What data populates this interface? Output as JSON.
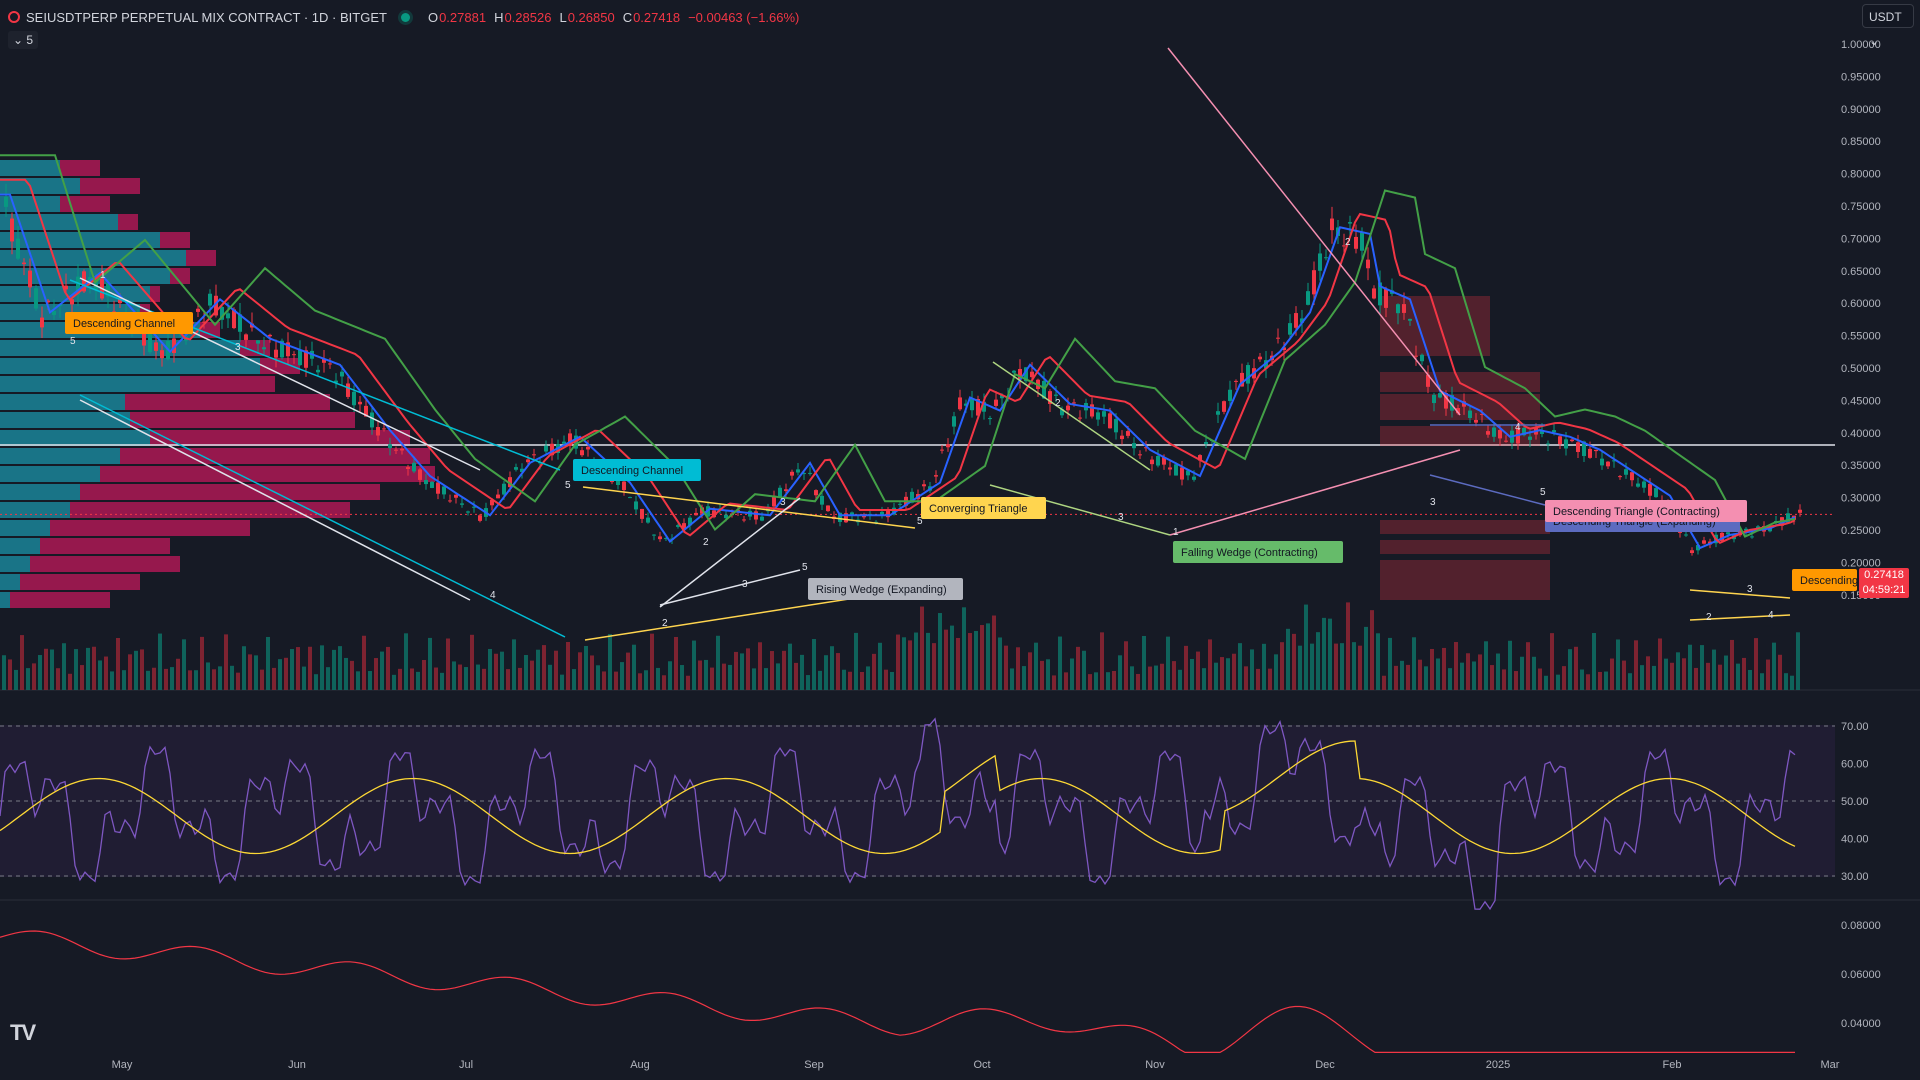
{
  "header": {
    "symbol": "SEIUSDTPERP PERPETUAL MIX CONTRACT · 1D · BITGET",
    "open_label": "O",
    "open": "0.27881",
    "high_label": "H",
    "high": "0.28526",
    "low_label": "L",
    "low": "0.26850",
    "close_label": "C",
    "close": "0.27418",
    "change": "−0.00463 (−1.66%)",
    "collapse_label": "⌄ 5",
    "currency": "USDT ⌄"
  },
  "price_axis": [
    "1.00000",
    "0.95000",
    "0.90000",
    "0.85000",
    "0.80000",
    "0.75000",
    "0.70000",
    "0.65000",
    "0.60000",
    "0.55000",
    "0.50000",
    "0.45000",
    "0.40000",
    "0.35000",
    "0.30000",
    "0.25000",
    "0.20000",
    "0.15000"
  ],
  "price_tag": {
    "price": "0.27418",
    "countdown": "04:59:21"
  },
  "rsi_axis": [
    "70.00",
    "60.00",
    "50.00",
    "40.00",
    "30.00"
  ],
  "lower_axis": [
    "0.08000",
    "0.06000",
    "0.04000"
  ],
  "time_axis": [
    "May",
    "Jun",
    "Jul",
    "Aug",
    "Sep",
    "Oct",
    "Nov",
    "Dec",
    "2025",
    "Feb",
    "Mar"
  ],
  "pattern_labels": [
    {
      "text": "Descending Channel",
      "color": "#ff9800",
      "text_color": "#131722"
    },
    {
      "text": "Descending Channel",
      "color": "#00bcd4",
      "text_color": "#131722"
    },
    {
      "text": "Rising Wedge (Expanding)",
      "color": "#b2b5be",
      "text_color": "#131722"
    },
    {
      "text": "Converging Triangle",
      "color": "#ffd54f",
      "text_color": "#131722"
    },
    {
      "text": "Falling Wedge (Contracting)",
      "color": "#66bb6a",
      "text_color": "#131722"
    },
    {
      "text": "Descending Triangle (Expanding)",
      "color": "#5c6bc0",
      "text_color": "#131722"
    },
    {
      "text": "Descending Triangle (Contracting)",
      "color": "#f48fb1",
      "text_color": "#131722"
    },
    {
      "text": "Descending",
      "color": "#ff9800",
      "text_color": "#131722"
    }
  ],
  "colors": {
    "up": "#089981",
    "down": "#f23645",
    "rsi": "#7e57c2",
    "rsi_ma": "#fdd835",
    "ema_fast": "#2962ff",
    "ema_mid": "#f23645",
    "ema_slow": "#43a047"
  },
  "logo": "TV"
}
